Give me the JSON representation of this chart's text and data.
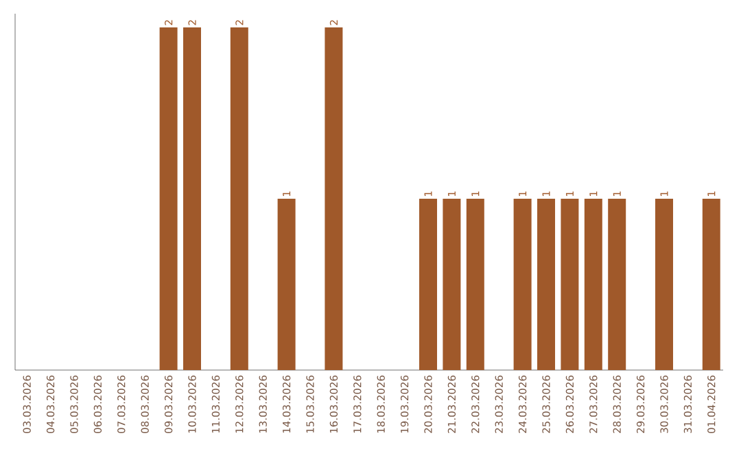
{
  "chart_data": {
    "type": "bar",
    "categories": [
      "03.03.2026",
      "04.03.2026",
      "05.03.2026",
      "06.03.2026",
      "07.03.2026",
      "08.03.2026",
      "09.03.2026",
      "10.03.2026",
      "11.03.2026",
      "12.03.2026",
      "13.03.2026",
      "14.03.2026",
      "15.03.2026",
      "16.03.2026",
      "17.03.2026",
      "18.03.2026",
      "19.03.2026",
      "20.03.2026",
      "21.03.2026",
      "22.03.2026",
      "23.03.2026",
      "24.03.2026",
      "25.03.2026",
      "26.03.2026",
      "27.03.2026",
      "28.03.2026",
      "29.03.2026",
      "30.03.2026",
      "31.03.2026",
      "01.04.2026"
    ],
    "values": [
      0,
      0,
      0,
      0,
      0,
      0,
      2,
      2,
      0,
      2,
      0,
      1,
      0,
      2,
      0,
      0,
      0,
      1,
      1,
      1,
      0,
      1,
      1,
      1,
      1,
      1,
      0,
      1,
      0,
      1
    ],
    "value_labels": [
      null,
      null,
      null,
      null,
      null,
      null,
      "2",
      "2",
      null,
      "2",
      null,
      "1",
      null,
      "2",
      null,
      null,
      null,
      "1",
      "1",
      "1",
      null,
      "1",
      "1",
      "1",
      "1",
      "1",
      null,
      "1",
      null,
      "1"
    ],
    "color": "#a0592a",
    "grid": false,
    "tick_labels": "x"
  }
}
